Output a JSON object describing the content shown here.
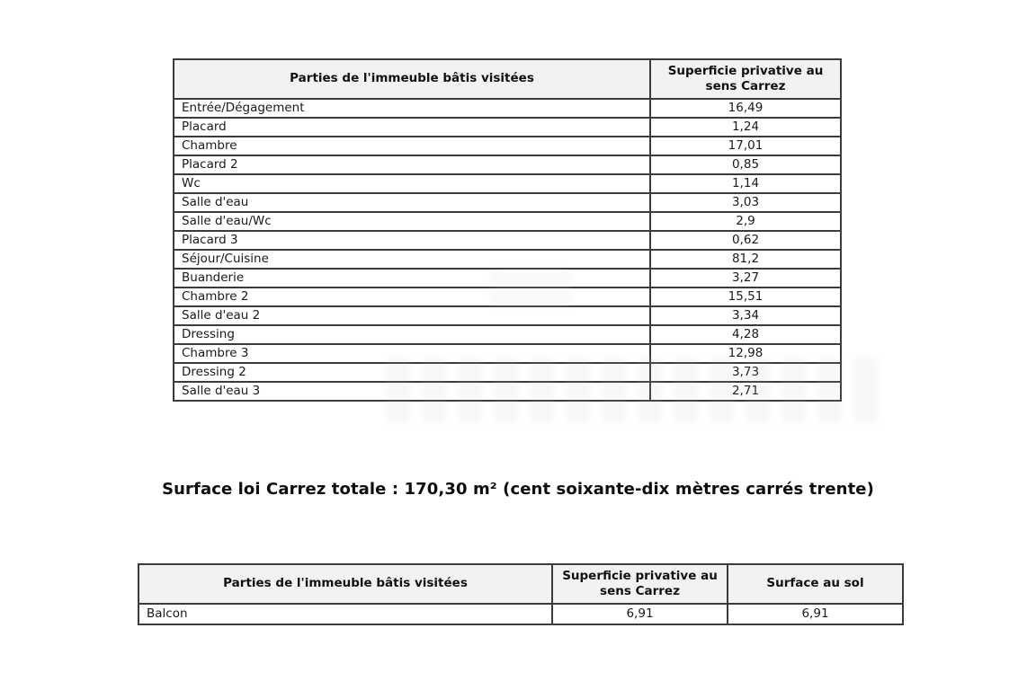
{
  "colors": {
    "header_bg": "#f2f2f1",
    "border": "#3b3b3b",
    "text": "#1a1a1a"
  },
  "total_caption": "Surface loi Carrez totale : 170,30 m² (cent soixante-dix mètres carrés trente)",
  "table1": {
    "headers": [
      "Parties de l'immeuble bâtis visitées",
      "Superficie privative au sens Carrez"
    ],
    "rows": [
      {
        "label": "Entrée/Dégagement",
        "value": "16,49"
      },
      {
        "label": "Placard",
        "value": "1,24"
      },
      {
        "label": "Chambre",
        "value": "17,01"
      },
      {
        "label": "Placard 2",
        "value": "0,85"
      },
      {
        "label": "Wc",
        "value": "1,14"
      },
      {
        "label": "Salle d'eau",
        "value": "3,03"
      },
      {
        "label": "Salle d'eau/Wc",
        "value": "2,9"
      },
      {
        "label": "Placard 3",
        "value": "0,62"
      },
      {
        "label": "Séjour/Cuisine",
        "value": "81,2"
      },
      {
        "label": "Buanderie",
        "value": "3,27"
      },
      {
        "label": "Chambre 2",
        "value": "15,51"
      },
      {
        "label": "Salle d'eau 2",
        "value": "3,34"
      },
      {
        "label": "Dressing",
        "value": "4,28"
      },
      {
        "label": "Chambre 3",
        "value": "12,98"
      },
      {
        "label": "Dressing 2",
        "value": "3,73"
      },
      {
        "label": "Salle d'eau 3",
        "value": "2,71"
      }
    ]
  },
  "table2": {
    "headers": [
      "Parties de l'immeuble bâtis visitées",
      "Superficie privative au sens Carrez",
      "Surface au sol"
    ],
    "rows": [
      {
        "label": "Balcon",
        "carrez": "6,91",
        "sol": "6,91"
      }
    ]
  }
}
